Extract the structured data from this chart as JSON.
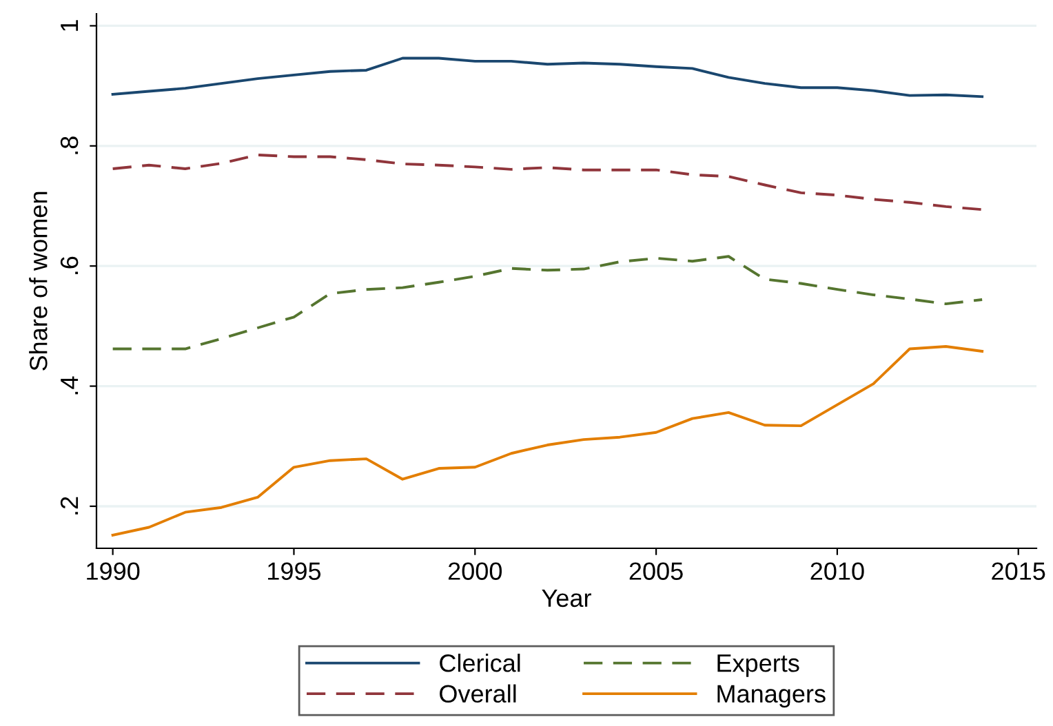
{
  "chart_data": {
    "type": "line",
    "xlabel": "Year",
    "ylabel": "Share of women",
    "x": [
      1990,
      1991,
      1992,
      1993,
      1994,
      1995,
      1996,
      1997,
      1998,
      1999,
      2000,
      2001,
      2002,
      2003,
      2004,
      2005,
      2006,
      2007,
      2008,
      2009,
      2010,
      2011,
      2012,
      2013,
      2014
    ],
    "series": [
      {
        "name": "Clerical",
        "color": "#1a476f",
        "line_style": "solid",
        "values": [
          0.886,
          0.891,
          0.896,
          0.904,
          0.912,
          0.918,
          0.924,
          0.926,
          0.946,
          0.946,
          0.941,
          0.941,
          0.936,
          0.938,
          0.936,
          0.932,
          0.929,
          0.914,
          0.904,
          0.897,
          0.897,
          0.892,
          0.884,
          0.885,
          0.882
        ]
      },
      {
        "name": "Overall",
        "color": "#90353b",
        "line_style": "dashed",
        "values": [
          0.762,
          0.768,
          0.762,
          0.771,
          0.785,
          0.782,
          0.782,
          0.777,
          0.77,
          0.768,
          0.765,
          0.761,
          0.764,
          0.76,
          0.76,
          0.76,
          0.752,
          0.749,
          0.735,
          0.722,
          0.718,
          0.711,
          0.706,
          0.699,
          0.694
        ]
      },
      {
        "name": "Experts",
        "color": "#55752f",
        "line_style": "dashed",
        "values": [
          0.462,
          0.462,
          0.462,
          0.479,
          0.497,
          0.515,
          0.554,
          0.561,
          0.564,
          0.573,
          0.583,
          0.596,
          0.593,
          0.595,
          0.607,
          0.613,
          0.608,
          0.616,
          0.578,
          0.571,
          0.561,
          0.552,
          0.545,
          0.537,
          0.544
        ]
      },
      {
        "name": "Managers",
        "color": "#e37e00",
        "line_style": "solid",
        "values": [
          0.152,
          0.165,
          0.19,
          0.198,
          0.215,
          0.265,
          0.276,
          0.279,
          0.245,
          0.263,
          0.265,
          0.288,
          0.302,
          0.311,
          0.315,
          0.323,
          0.346,
          0.356,
          0.335,
          0.334,
          0.369,
          0.404,
          0.462,
          0.466,
          0.458
        ]
      }
    ],
    "xlim": [
      1989.55,
      2015.5
    ],
    "ylim": [
      0.13,
      1.02
    ],
    "xticks": [
      1990,
      1995,
      2000,
      2005,
      2010,
      2015
    ],
    "yticks": [
      {
        "value": 0.2,
        "label": ".2"
      },
      {
        "value": 0.4,
        "label": ".4"
      },
      {
        "value": 0.6,
        "label": ".6"
      },
      {
        "value": 0.8,
        "label": ".8"
      },
      {
        "value": 1,
        "label": "1"
      }
    ],
    "grid": "y",
    "legend": "bottom",
    "marker": "none"
  }
}
